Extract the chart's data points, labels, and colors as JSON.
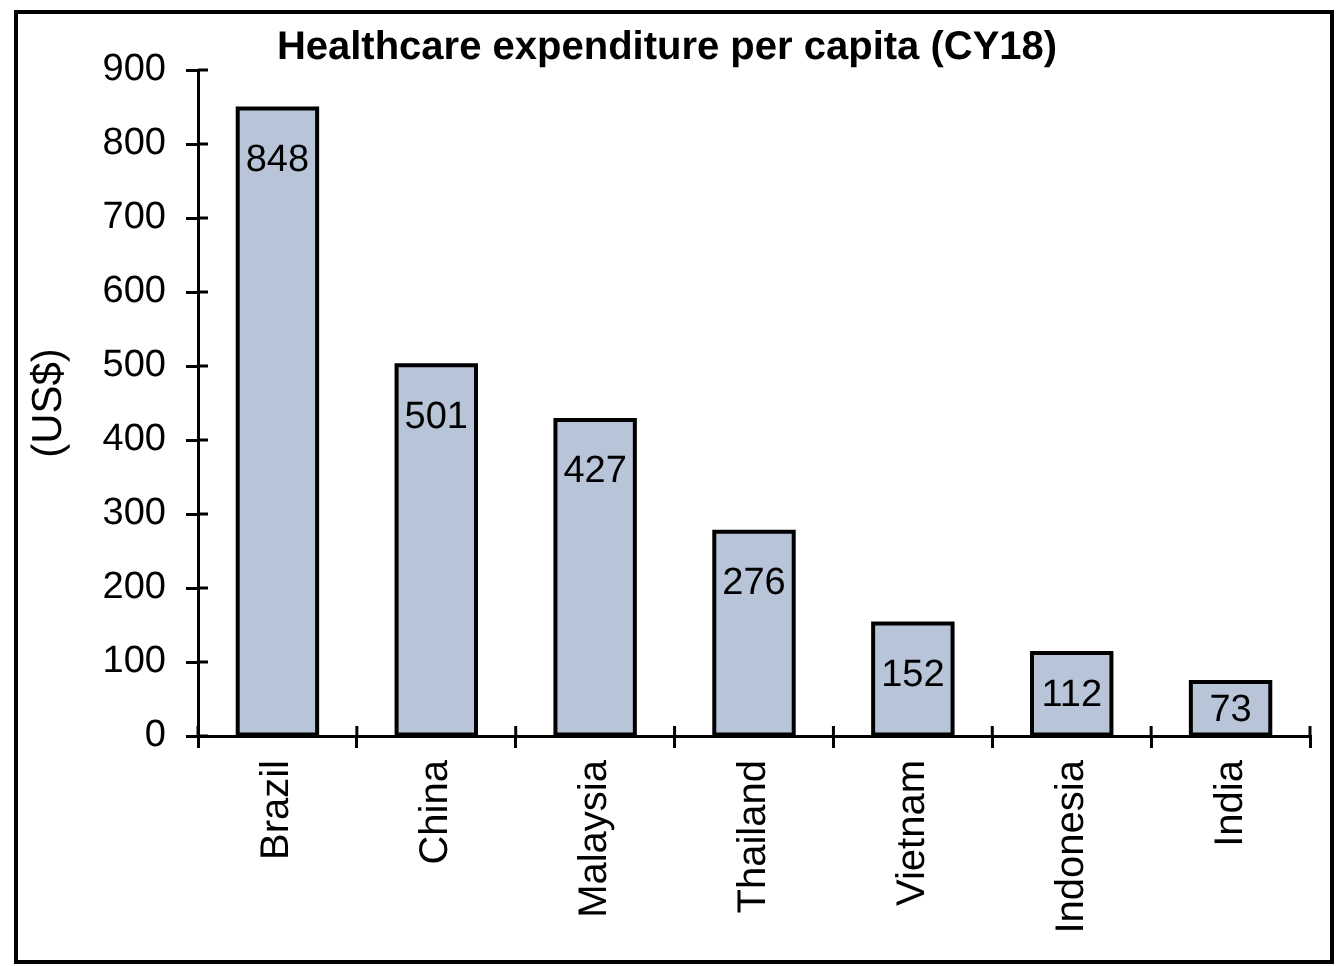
{
  "chart_data": {
    "type": "bar",
    "title": "Healthcare expenditure per capita (CY18)",
    "ylabel": "(US$)",
    "categories": [
      "Brazil",
      "China",
      "Malaysia",
      "Thailand",
      "Vietnam",
      "Indonesia",
      "India"
    ],
    "values": [
      848,
      501,
      427,
      276,
      152,
      112,
      73
    ],
    "color": "#b8c4d8",
    "ylim": [
      0,
      900
    ],
    "yticks": [
      0,
      100,
      200,
      300,
      400,
      500,
      600,
      700,
      800,
      900
    ],
    "data_labels": true
  }
}
